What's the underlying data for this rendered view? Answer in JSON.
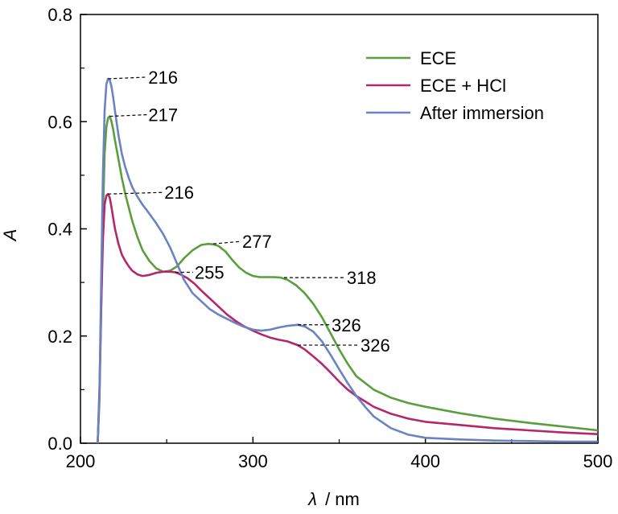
{
  "chart_data": {
    "type": "line",
    "title": "",
    "xlabel_symbol": "λ",
    "xlabel_unit": "/ nm",
    "ylabel": "A",
    "xlim": [
      200,
      500
    ],
    "ylim": [
      0,
      0.8
    ],
    "xticks": [
      200,
      300,
      400,
      500
    ],
    "xtick_labels": [
      "200",
      "300",
      "400",
      "500"
    ],
    "yticks": [
      0,
      0.2,
      0.4,
      0.6,
      0.8
    ],
    "ytick_labels": [
      "0.0",
      "0.2",
      "0.4",
      "0.6",
      "0.8"
    ],
    "grid": false,
    "legend_position": "top-right",
    "series": [
      {
        "name": "ECE",
        "color": "#5a9e3e",
        "x": [
          210,
          211,
          212,
          213,
          214,
          215,
          216,
          217,
          218,
          219,
          220,
          222,
          224,
          226,
          228,
          230,
          233,
          236,
          240,
          244,
          248,
          252,
          256,
          260,
          265,
          270,
          274,
          277,
          280,
          284,
          288,
          292,
          296,
          300,
          304,
          308,
          312,
          316,
          320,
          325,
          330,
          335,
          340,
          345,
          350,
          355,
          360,
          370,
          380,
          390,
          400,
          420,
          440,
          460,
          480,
          500
        ],
        "y": [
          0.0,
          0.08,
          0.25,
          0.42,
          0.54,
          0.59,
          0.607,
          0.61,
          0.6,
          0.585,
          0.565,
          0.53,
          0.495,
          0.465,
          0.44,
          0.415,
          0.385,
          0.36,
          0.34,
          0.326,
          0.32,
          0.322,
          0.33,
          0.345,
          0.36,
          0.37,
          0.372,
          0.371,
          0.368,
          0.358,
          0.342,
          0.328,
          0.318,
          0.312,
          0.31,
          0.31,
          0.31,
          0.309,
          0.305,
          0.295,
          0.28,
          0.26,
          0.235,
          0.205,
          0.175,
          0.148,
          0.125,
          0.1,
          0.085,
          0.075,
          0.068,
          0.056,
          0.046,
          0.038,
          0.031,
          0.024
        ]
      },
      {
        "name": "ECE + HCl",
        "color": "#b5276b",
        "x": [
          210,
          211,
          212,
          213,
          214,
          215,
          216,
          217,
          218,
          219,
          220,
          222,
          224,
          226,
          228,
          230,
          233,
          236,
          240,
          244,
          248,
          252,
          255,
          258,
          262,
          266,
          270,
          275,
          280,
          285,
          290,
          295,
          300,
          305,
          310,
          315,
          320,
          326,
          330,
          335,
          340,
          345,
          350,
          355,
          360,
          365,
          370,
          380,
          390,
          400,
          420,
          440,
          460,
          480,
          500
        ],
        "y": [
          0.0,
          0.1,
          0.25,
          0.38,
          0.445,
          0.462,
          0.465,
          0.458,
          0.44,
          0.42,
          0.4,
          0.372,
          0.352,
          0.34,
          0.33,
          0.322,
          0.315,
          0.312,
          0.314,
          0.318,
          0.32,
          0.32,
          0.319,
          0.315,
          0.308,
          0.298,
          0.285,
          0.27,
          0.255,
          0.24,
          0.228,
          0.218,
          0.21,
          0.203,
          0.197,
          0.193,
          0.19,
          0.183,
          0.175,
          0.162,
          0.148,
          0.132,
          0.115,
          0.1,
          0.088,
          0.078,
          0.068,
          0.055,
          0.046,
          0.04,
          0.034,
          0.028,
          0.024,
          0.02,
          0.017
        ]
      },
      {
        "name": "After immersion",
        "color": "#6b83c3",
        "x": [
          210,
          211,
          212,
          213,
          214,
          215,
          216,
          217,
          218,
          219,
          220,
          222,
          224,
          226,
          228,
          230,
          233,
          236,
          240,
          244,
          248,
          252,
          256,
          260,
          265,
          270,
          275,
          280,
          285,
          290,
          295,
          300,
          305,
          310,
          315,
          320,
          326,
          330,
          335,
          340,
          345,
          350,
          355,
          360,
          365,
          370,
          380,
          390,
          400,
          420,
          440,
          460,
          480,
          500
        ],
        "y": [
          0.0,
          0.09,
          0.3,
          0.5,
          0.62,
          0.67,
          0.68,
          0.678,
          0.665,
          0.645,
          0.62,
          0.575,
          0.54,
          0.515,
          0.495,
          0.478,
          0.46,
          0.445,
          0.428,
          0.41,
          0.39,
          0.365,
          0.335,
          0.305,
          0.28,
          0.265,
          0.25,
          0.24,
          0.232,
          0.224,
          0.217,
          0.212,
          0.21,
          0.212,
          0.216,
          0.219,
          0.221,
          0.218,
          0.208,
          0.19,
          0.165,
          0.138,
          0.112,
          0.088,
          0.068,
          0.05,
          0.028,
          0.016,
          0.01,
          0.007,
          0.005,
          0.004,
          0.003,
          0.003
        ]
      }
    ],
    "annotations": [
      {
        "series": 2,
        "x": 216,
        "y": 0.68,
        "label": "216",
        "text_x": 216,
        "text_y": 0.68
      },
      {
        "series": 0,
        "x": 217,
        "y": 0.61,
        "label": "217",
        "text_x": 217,
        "text_y": 0.61
      },
      {
        "series": 1,
        "x": 216,
        "y": 0.465,
        "label": "216",
        "text_x": 216,
        "text_y": 0.465
      },
      {
        "series": 0,
        "x": 277,
        "y": 0.372,
        "label": "277",
        "text_x": 277,
        "text_y": 0.372
      },
      {
        "series": 1,
        "x": 255,
        "y": 0.319,
        "label": "255",
        "text_x": 255,
        "text_y": 0.319
      },
      {
        "series": 0,
        "x": 318,
        "y": 0.309,
        "label": "318",
        "text_x": 318,
        "text_y": 0.309
      },
      {
        "series": 2,
        "x": 326,
        "y": 0.221,
        "label": "326",
        "text_x": 326,
        "text_y": 0.221
      },
      {
        "series": 1,
        "x": 326,
        "y": 0.183,
        "label": "326",
        "text_x": 326,
        "text_y": 0.183
      }
    ]
  }
}
